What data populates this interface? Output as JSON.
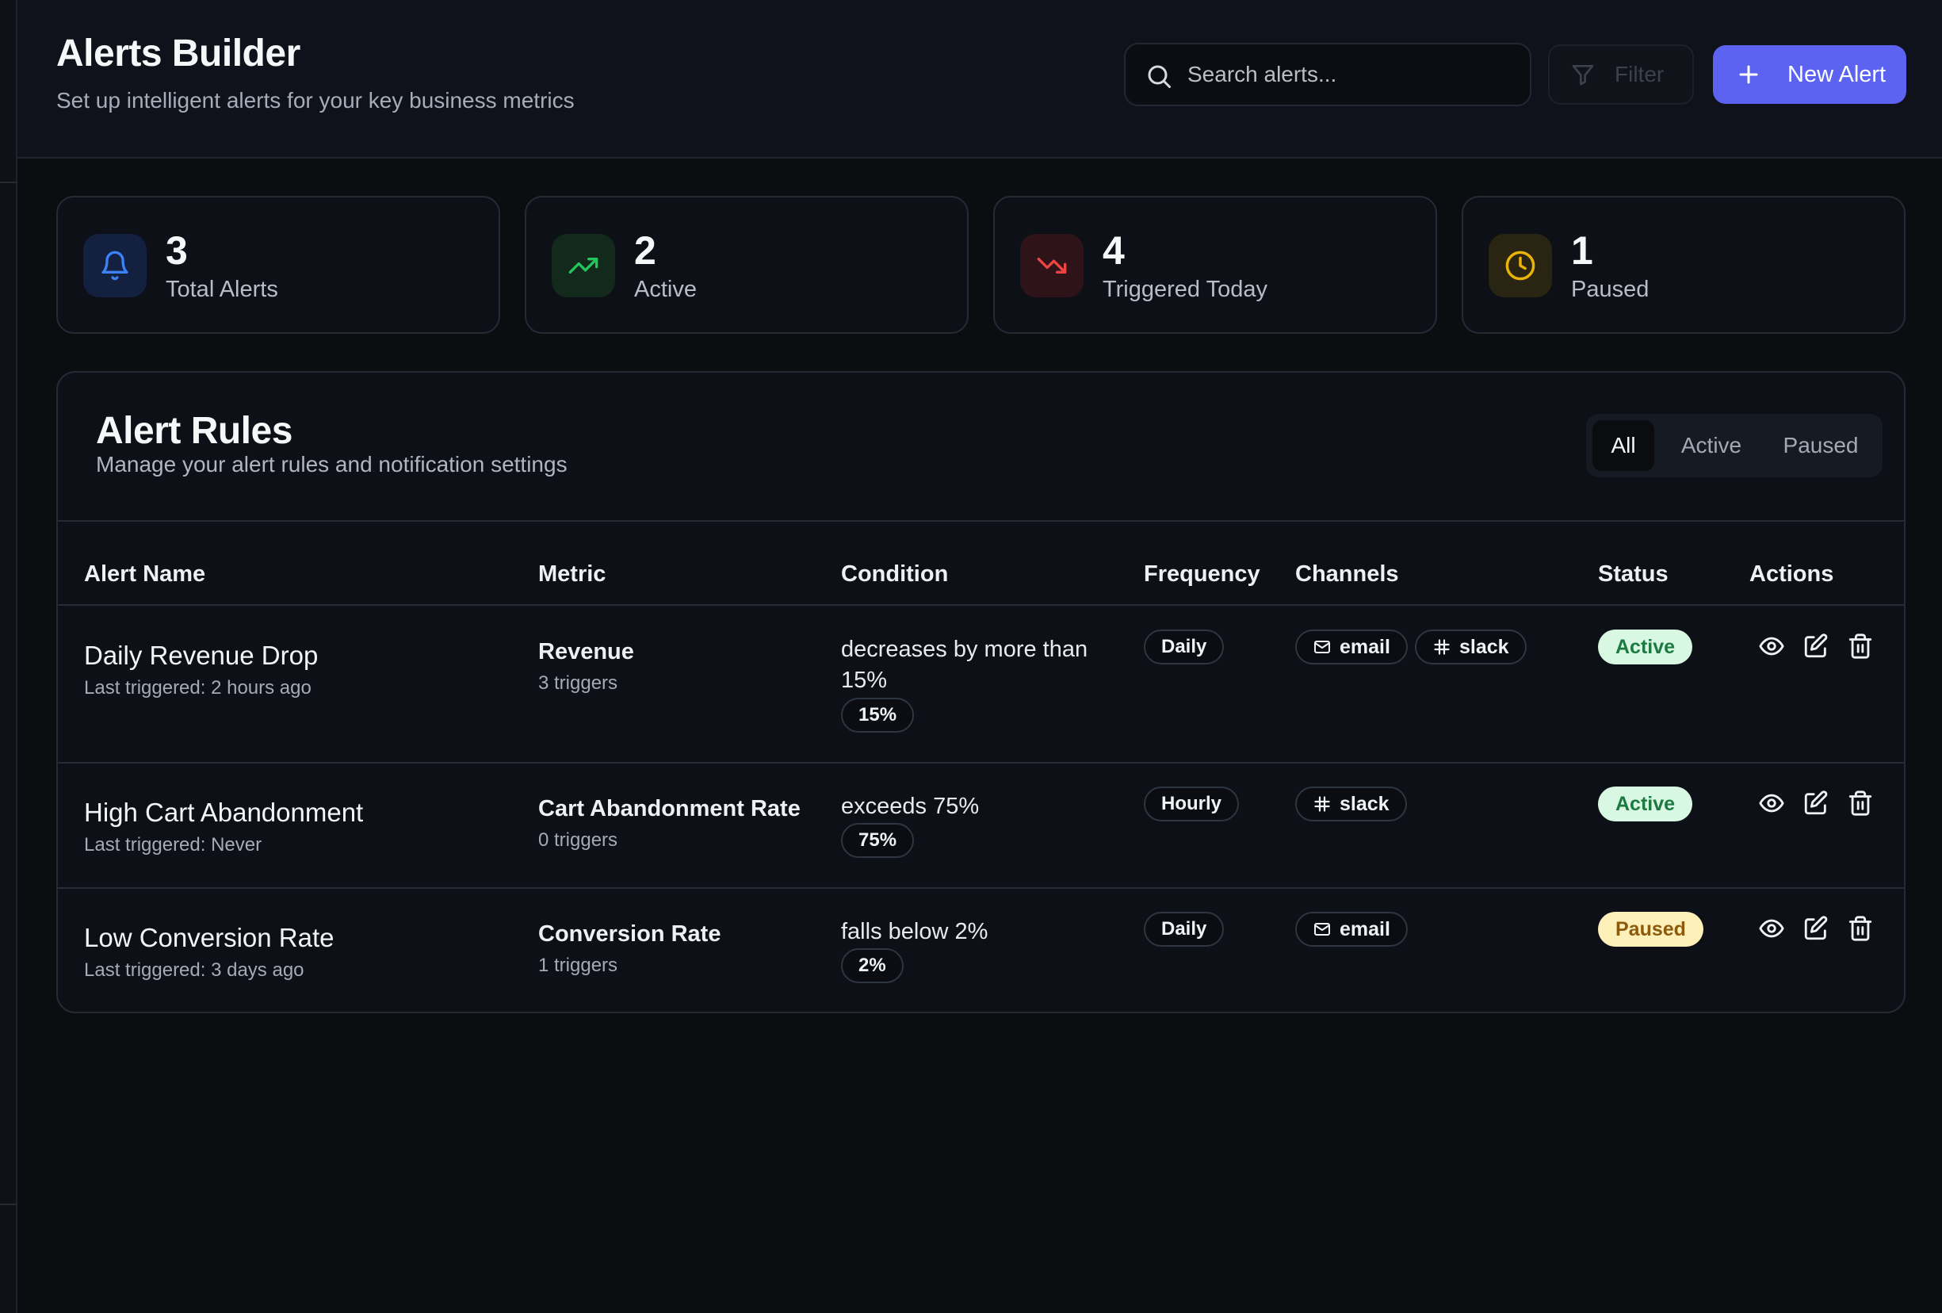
{
  "header": {
    "title": "Alerts Builder",
    "subtitle": "Set up intelligent alerts for your key business metrics",
    "search_placeholder": "Search alerts...",
    "filter_label": "Filter",
    "new_alert_label": "New Alert"
  },
  "stats": [
    {
      "value": "3",
      "label": "Total Alerts",
      "icon": "bell-icon",
      "color": "#3b82f6"
    },
    {
      "value": "2",
      "label": "Active",
      "icon": "trending-up-icon",
      "color": "#22c55e"
    },
    {
      "value": "4",
      "label": "Triggered Today",
      "icon": "trending-down-icon",
      "color": "#ef4444"
    },
    {
      "value": "1",
      "label": "Paused",
      "icon": "clock-icon",
      "color": "#eab308"
    }
  ],
  "panel": {
    "title": "Alert Rules",
    "subtitle": "Manage your alert rules and notification settings",
    "tabs": [
      "All",
      "Active",
      "Paused"
    ],
    "selected_tab": "All"
  },
  "table": {
    "columns": [
      "Alert Name",
      "Metric",
      "Condition",
      "Frequency",
      "Channels",
      "Status",
      "Actions"
    ],
    "rows": [
      {
        "name": "Daily Revenue Drop",
        "last_triggered": "Last triggered: 2 hours ago",
        "metric": "Revenue",
        "triggers": "3 triggers",
        "condition": "decreases by more than 15%",
        "threshold": "15%",
        "frequency": "Daily",
        "channels": [
          "email",
          "slack"
        ],
        "status": "Active"
      },
      {
        "name": "High Cart Abandonment",
        "last_triggered": "Last triggered: Never",
        "metric": "Cart Abandonment Rate",
        "triggers": "0 triggers",
        "condition": "exceeds 75%",
        "threshold": "75%",
        "frequency": "Hourly",
        "channels": [
          "slack"
        ],
        "status": "Active"
      },
      {
        "name": "Low Conversion Rate",
        "last_triggered": "Last triggered: 3 days ago",
        "metric": "Conversion Rate",
        "triggers": "1 triggers",
        "condition": "falls below 2%",
        "threshold": "2%",
        "frequency": "Daily",
        "channels": [
          "email"
        ],
        "status": "Paused"
      }
    ]
  },
  "colors": {
    "accent": "#5b63f0",
    "active_bg": "#d9f8e3",
    "active_text": "#1c7a40",
    "paused_bg": "#fdf0b8",
    "paused_text": "#8d5a0c"
  }
}
